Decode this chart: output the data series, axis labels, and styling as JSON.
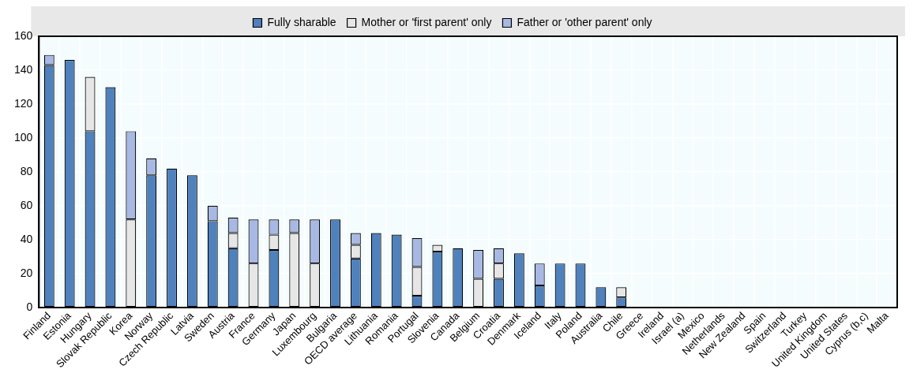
{
  "chart_data": {
    "type": "bar",
    "stacked": true,
    "legend": "top",
    "grid": true,
    "categories": [
      "Finland",
      "Estonia",
      "Hungary",
      "Slovak Republic",
      "Korea",
      "Norway",
      "Czech Republic",
      "Latvia",
      "Sweden",
      "Austria",
      "France",
      "Germany",
      "Japan",
      "Luxembourg",
      "Bulgaria",
      "OECD average",
      "Lithuania",
      "Romania",
      "Portugal",
      "Slovenia",
      "Canada",
      "Belgium",
      "Croatia",
      "Denmark",
      "Iceland",
      "Italy",
      "Poland",
      "Australia",
      "Chile",
      "Greece",
      "Ireland",
      "Israel (a)",
      "Mexico",
      "Netherlands",
      "New Zealand",
      "Spain",
      "Switzerland",
      "Turkey",
      "United Kingdom",
      "United States",
      "Cyprus (b,c)",
      "Malta"
    ],
    "series": [
      {
        "name": "Fully sharable",
        "color": "#4f81bd",
        "values": [
          143,
          146,
          104,
          130,
          0,
          78,
          82,
          78,
          51,
          35,
          0,
          34,
          0,
          0,
          52,
          29,
          44,
          43,
          7,
          33,
          35,
          0,
          17,
          32,
          13,
          26,
          26,
          12,
          6,
          0,
          0,
          0,
          0,
          0,
          0,
          0,
          0,
          0,
          0,
          0,
          0,
          0
        ]
      },
      {
        "name": "Mother or 'first parent' only",
        "color": "#e6e6e6",
        "values": [
          0,
          0,
          32,
          0,
          52,
          0,
          0,
          0,
          0,
          9,
          26,
          9,
          44,
          26,
          0,
          8,
          0,
          0,
          17,
          4,
          0,
          17,
          9,
          0,
          0,
          0,
          0,
          0,
          6,
          0,
          0,
          0,
          0,
          0,
          0,
          0,
          0,
          0,
          0,
          0,
          0,
          0
        ]
      },
      {
        "name": "Father or 'other parent' only",
        "color": "#a7b9e3",
        "values": [
          6,
          0,
          0,
          0,
          52,
          10,
          0,
          0,
          9,
          9,
          26,
          9,
          8,
          26,
          0,
          7,
          0,
          0,
          17,
          0,
          0,
          17,
          9,
          0,
          13,
          0,
          0,
          0,
          0,
          0,
          0,
          0,
          0,
          0,
          0,
          0,
          0,
          0,
          0,
          0,
          0,
          0
        ]
      }
    ],
    "ylim": [
      0,
      160
    ],
    "yticks": [
      0,
      20,
      40,
      60,
      80,
      100,
      120,
      140,
      160
    ]
  }
}
